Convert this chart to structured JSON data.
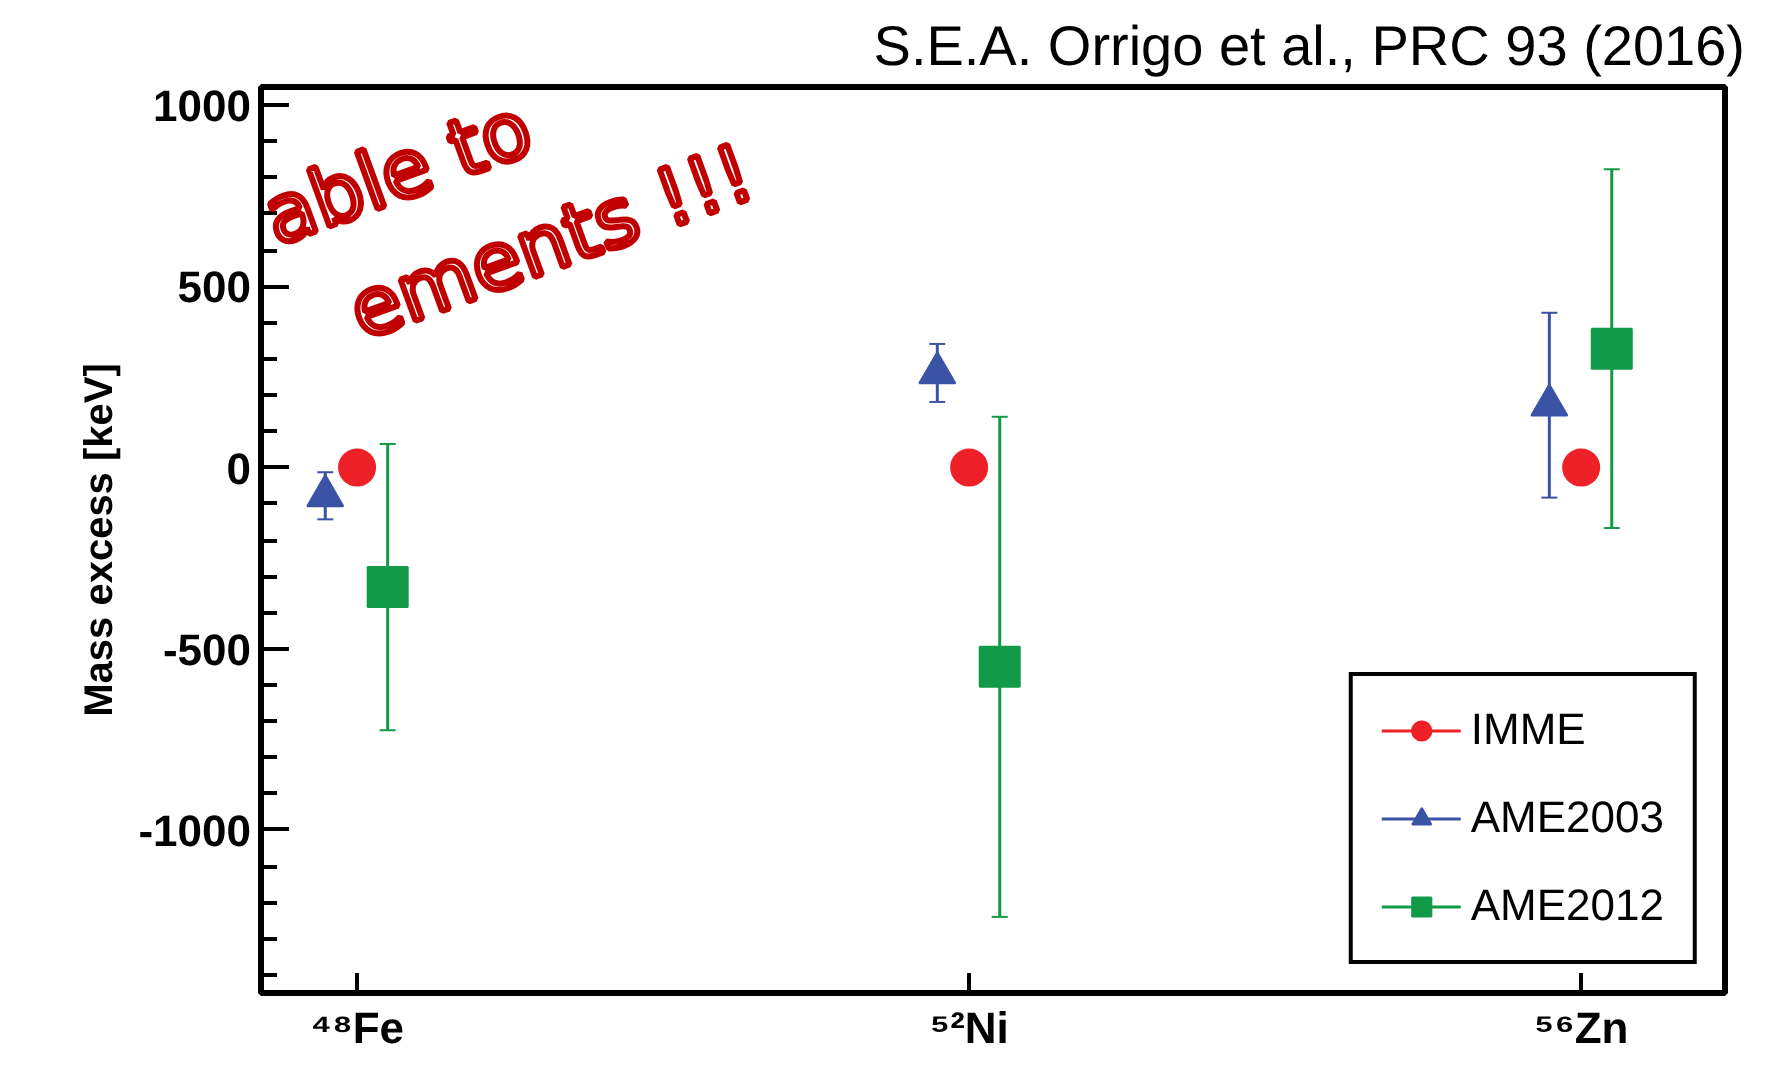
{
  "chart_data": {
    "type": "scatter",
    "ylabel": "Mass excess [keV]",
    "categories": [
      "⁴⁸Fe",
      "⁵²Ni",
      "⁵⁶Zn"
    ],
    "ylim": [
      -1450,
      1050
    ],
    "yticks": [
      -1000,
      -500,
      0,
      500,
      1000
    ],
    "grid": false,
    "legend": "bottom right",
    "series": [
      {
        "name": "IMME",
        "color": "#ee2028",
        "marker": "circle",
        "values": [
          0,
          0,
          0
        ]
      },
      {
        "name": "AME2003",
        "color": "#3a53a4",
        "marker": "triangle",
        "values": [
          -78,
          261,
          172
        ],
        "errors": [
          65,
          80,
          255
        ]
      },
      {
        "name": "AME2012",
        "color": "#139a48",
        "marker": "square",
        "values": [
          -330,
          -550,
          328
        ],
        "errors": [
          395,
          690,
          495
        ]
      }
    ],
    "annotations": [
      "S.E.A. Orrigo et al., PRC 93 (2016)",
      "able to",
      "ements !!!"
    ]
  }
}
